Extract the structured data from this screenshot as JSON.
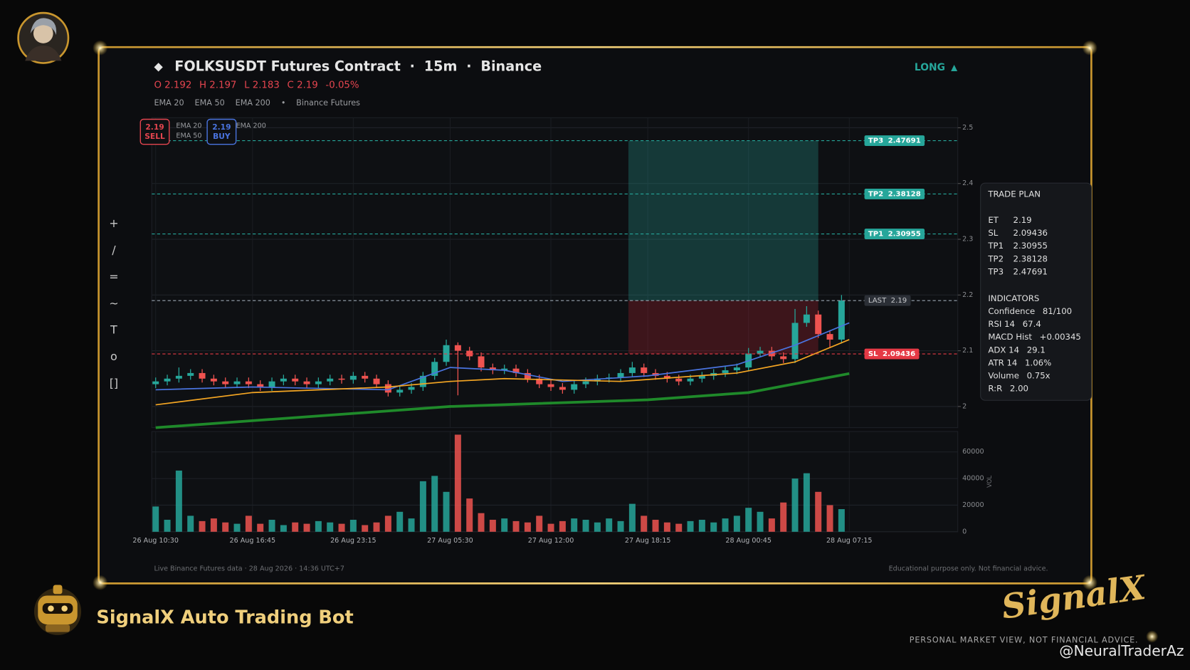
{
  "header": {
    "title": "FOLKSUSDT Futures Contract",
    "interval": "15m",
    "exchange": "Binance",
    "direction": "LONG",
    "ohlc": [
      "O 2.192",
      "H 2.197",
      "L 2.183",
      "C 2.19",
      "-0.05%"
    ],
    "source": "Binance Futures"
  },
  "toolbar": [
    "+",
    "/",
    "=",
    "~",
    "T",
    "o",
    "[]"
  ],
  "buttons": {
    "sell": "SELL",
    "buy": "BUY"
  },
  "chart_data": {
    "type": "candlestick",
    "x": [
      0,
      3,
      6,
      9,
      12,
      15,
      18,
      21,
      24,
      27,
      30,
      33,
      36,
      39,
      42,
      45,
      48,
      51,
      54,
      57,
      60,
      63,
      66,
      69,
      72,
      75,
      78,
      81,
      84,
      87,
      90,
      93,
      96,
      99,
      102,
      105,
      108,
      111,
      114,
      117,
      120,
      123,
      126,
      129,
      132,
      135,
      138,
      141,
      144,
      147,
      150,
      153,
      156,
      159,
      162,
      165,
      168,
      171,
      174,
      177
    ],
    "open": [
      2.04,
      2.045,
      2.05,
      2.055,
      2.06,
      2.05,
      2.045,
      2.04,
      2.045,
      2.04,
      2.035,
      2.045,
      2.05,
      2.045,
      2.04,
      2.045,
      2.05,
      2.048,
      2.055,
      2.05,
      2.04,
      2.025,
      2.03,
      2.035,
      2.055,
      2.08,
      2.11,
      2.1,
      2.09,
      2.07,
      2.065,
      2.068,
      2.06,
      2.05,
      2.04,
      2.035,
      2.03,
      2.04,
      2.045,
      2.05,
      2.052,
      2.06,
      2.07,
      2.06,
      2.055,
      2.05,
      2.045,
      2.05,
      2.055,
      2.06,
      2.065,
      2.07,
      2.095,
      2.1,
      2.09,
      2.085,
      2.15,
      2.165,
      2.13,
      2.12
    ],
    "high": [
      2.052,
      2.057,
      2.07,
      2.067,
      2.067,
      2.057,
      2.052,
      2.052,
      2.052,
      2.047,
      2.052,
      2.057,
      2.057,
      2.052,
      2.052,
      2.057,
      2.057,
      2.062,
      2.062,
      2.057,
      2.047,
      2.037,
      2.042,
      2.062,
      2.087,
      2.12,
      2.115,
      2.107,
      2.097,
      2.077,
      2.075,
      2.075,
      2.067,
      2.057,
      2.047,
      2.042,
      2.047,
      2.052,
      2.057,
      2.059,
      2.067,
      2.08,
      2.077,
      2.067,
      2.062,
      2.057,
      2.057,
      2.062,
      2.067,
      2.072,
      2.077,
      2.105,
      2.107,
      2.107,
      2.097,
      2.175,
      2.18,
      2.172,
      2.137,
      2.2
    ],
    "low": [
      2.033,
      2.038,
      2.043,
      2.048,
      2.043,
      2.038,
      2.033,
      2.033,
      2.033,
      2.028,
      2.028,
      2.038,
      2.038,
      2.033,
      2.033,
      2.038,
      2.041,
      2.041,
      2.043,
      2.033,
      2.018,
      2.018,
      2.023,
      2.028,
      2.048,
      2.073,
      2.02,
      2.083,
      2.063,
      2.058,
      2.058,
      2.053,
      2.043,
      2.033,
      2.028,
      2.023,
      2.023,
      2.033,
      2.038,
      2.043,
      2.045,
      2.053,
      2.053,
      2.048,
      2.043,
      2.038,
      2.038,
      2.043,
      2.048,
      2.053,
      2.058,
      2.063,
      2.088,
      2.083,
      2.078,
      2.078,
      2.143,
      2.123,
      2.105,
      2.113
    ],
    "close": [
      2.045,
      2.05,
      2.055,
      2.06,
      2.05,
      2.045,
      2.04,
      2.045,
      2.04,
      2.035,
      2.045,
      2.05,
      2.045,
      2.04,
      2.045,
      2.05,
      2.048,
      2.055,
      2.05,
      2.04,
      2.025,
      2.03,
      2.035,
      2.055,
      2.08,
      2.11,
      2.1,
      2.09,
      2.07,
      2.065,
      2.068,
      2.06,
      2.05,
      2.04,
      2.035,
      2.03,
      2.04,
      2.045,
      2.05,
      2.052,
      2.06,
      2.07,
      2.06,
      2.055,
      2.05,
      2.045,
      2.05,
      2.055,
      2.06,
      2.065,
      2.07,
      2.095,
      2.1,
      2.09,
      2.085,
      2.15,
      2.165,
      2.13,
      2.12,
      2.19
    ],
    "volume": [
      19000,
      9000,
      46000,
      12000,
      8000,
      10000,
      7000,
      6000,
      12000,
      6000,
      9000,
      5000,
      7000,
      6000,
      8000,
      7000,
      6000,
      9000,
      5000,
      7000,
      12000,
      15000,
      10000,
      38000,
      42000,
      30000,
      73000,
      25000,
      14000,
      9000,
      10000,
      8000,
      7000,
      12000,
      6000,
      8000,
      10000,
      9000,
      7000,
      10000,
      8000,
      21000,
      12000,
      9000,
      7000,
      6000,
      8000,
      9000,
      7000,
      10000,
      12000,
      18000,
      15000,
      10000,
      22000,
      40000,
      44000,
      30000,
      20000,
      17000
    ],
    "up_color": "#26a69a",
    "down_color": "#ef5350",
    "series": [
      {
        "name": "EMA 20",
        "color": "#4a74e0",
        "x": [
          0,
          25,
          60,
          76,
          90,
          105,
          127,
          150,
          165,
          179
        ],
        "values": [
          2.03,
          2.035,
          2.03,
          2.07,
          2.065,
          2.045,
          2.055,
          2.075,
          2.11,
          2.15
        ]
      },
      {
        "name": "EMA 50",
        "color": "#f5a623",
        "x": [
          0,
          25,
          60,
          76,
          90,
          120,
          150,
          165,
          179
        ],
        "values": [
          2.003,
          2.025,
          2.035,
          2.045,
          2.05,
          2.045,
          2.06,
          2.08,
          2.12
        ]
      },
      {
        "name": "EMA 200",
        "color": "#1f8a2a",
        "x": [
          0,
          76,
          127,
          153,
          179
        ],
        "values": [
          1.962,
          2.0,
          2.012,
          2.025,
          2.059
        ]
      }
    ],
    "levels": [
      {
        "name": "TP3",
        "value": 2.47691,
        "color": "#26a69a"
      },
      {
        "name": "TP2",
        "value": 2.38128,
        "color": "#26a69a"
      },
      {
        "name": "TP1",
        "value": 2.30955,
        "color": "#26a69a"
      },
      {
        "name": "LAST",
        "value": 2.19,
        "color": "#9aa4b0"
      },
      {
        "name": "SL",
        "value": 2.09436,
        "color": "#e53945"
      }
    ],
    "trade_zone": {
      "x_start": 122,
      "x_end": 171
    },
    "xlim": [
      -1,
      207
    ],
    "xticks": [
      {
        "value": 0,
        "label": "26 Aug 10:30"
      },
      {
        "value": 25,
        "label": "26 Aug 16:45"
      },
      {
        "value": 51,
        "label": "26 Aug 23:15"
      },
      {
        "value": 76,
        "label": "27 Aug 05:30"
      },
      {
        "value": 102,
        "label": "27 Aug 12:00"
      },
      {
        "value": 127,
        "label": "27 Aug 18:15"
      },
      {
        "value": 153,
        "label": "28 Aug 00:45"
      },
      {
        "value": 179,
        "label": "28 Aug 07:15"
      }
    ],
    "ylim": [
      1.962,
      2.518
    ],
    "yticks": [
      2,
      2.1,
      2.2,
      2.3,
      2.4,
      2.5
    ],
    "volume_label": "VOL",
    "volume_ylim": [
      0,
      75400
    ],
    "volume_ticks": [
      0,
      20000,
      40000,
      60000
    ],
    "grid": true
  },
  "trade_plan": {
    "title": "TRADE PLAN",
    "rows": [
      [
        "ET",
        "2.19"
      ],
      [
        "SL",
        "2.09436"
      ],
      [
        "TP1",
        "2.30955"
      ],
      [
        "TP2",
        "2.38128"
      ],
      [
        "TP3",
        "2.47691"
      ]
    ],
    "indicators_title": "INDICATORS",
    "indicators": [
      [
        "Confidence",
        "81/100"
      ],
      [
        "RSI 14",
        "67.4"
      ],
      [
        "MACD Hist",
        "+0.00345"
      ],
      [
        "ADX 14",
        "29.1"
      ],
      [
        "ATR 14",
        "1.06%"
      ],
      [
        "Volume",
        "0.75x"
      ],
      [
        "R:R",
        "2.00"
      ]
    ]
  },
  "footer": {
    "left": "Live Binance Futures data  ·  28 Aug 2026 · 14:36 UTC+7",
    "right": "Educational purpose only. Not financial advice."
  },
  "branding": {
    "bot_name": "SignalX Auto Trading Bot",
    "logo": "SignalX",
    "tagline": "PERSONAL MARKET VIEW, NOT FINANCIAL ADVICE.",
    "watermark": "@NeuralTraderAz"
  }
}
